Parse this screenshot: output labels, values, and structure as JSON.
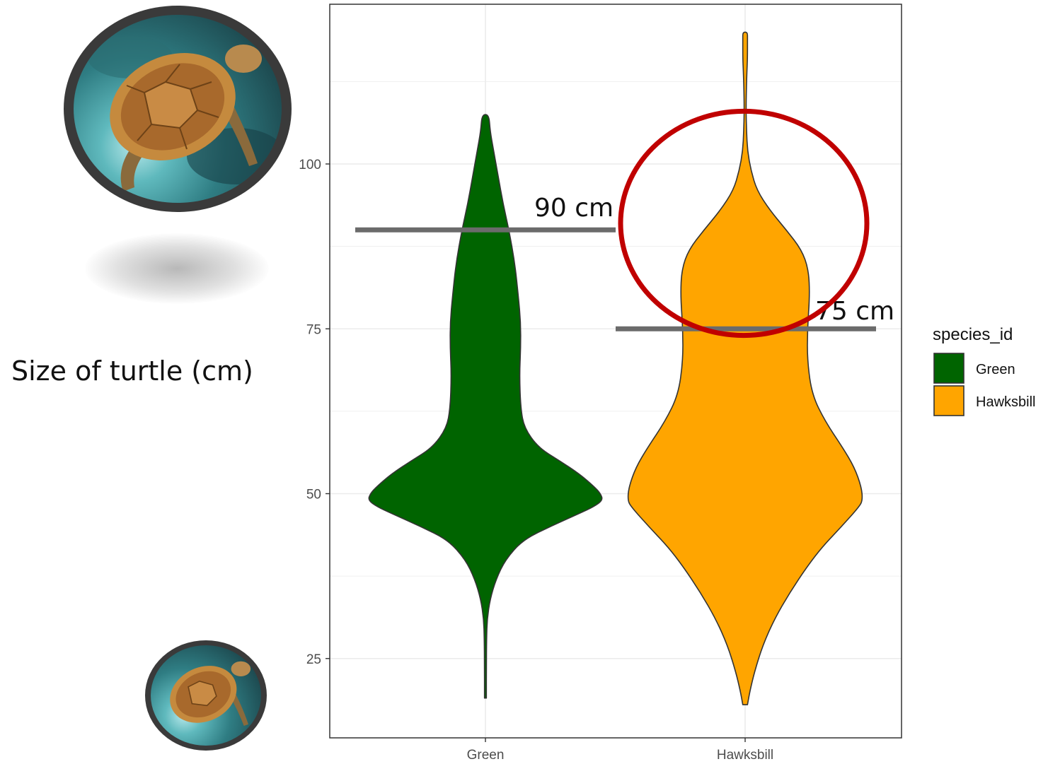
{
  "side_label": "Size of turtle (cm)",
  "images": {
    "large": "sea-turtle-photo",
    "small": "sea-turtle-photo"
  },
  "chart_data": {
    "type": "violin",
    "xlabel": "",
    "ylabel": "",
    "categories": [
      "Green",
      "Hawksbill"
    ],
    "ylim": [
      13,
      125
    ],
    "yticks": [
      25,
      50,
      75,
      100
    ],
    "grid": true,
    "series": [
      {
        "name": "Green",
        "color": "#006400",
        "min": 19,
        "max": 107.5,
        "profile": [
          [
            19,
            0.008
          ],
          [
            24,
            0.008
          ],
          [
            28,
            0.01
          ],
          [
            31,
            0.015
          ],
          [
            34,
            0.04
          ],
          [
            37,
            0.09
          ],
          [
            40,
            0.17
          ],
          [
            43,
            0.32
          ],
          [
            45,
            0.55
          ],
          [
            47,
            0.8
          ],
          [
            48,
            0.92
          ],
          [
            49,
            1.0
          ],
          [
            50,
            0.98
          ],
          [
            51,
            0.93
          ],
          [
            53,
            0.8
          ],
          [
            55,
            0.63
          ],
          [
            57,
            0.45
          ],
          [
            60,
            0.33
          ],
          [
            63,
            0.3
          ],
          [
            68,
            0.29
          ],
          [
            72,
            0.3
          ],
          [
            76,
            0.3
          ],
          [
            80,
            0.28
          ],
          [
            85,
            0.25
          ],
          [
            90,
            0.2
          ],
          [
            94,
            0.15
          ],
          [
            98,
            0.11
          ],
          [
            102,
            0.07
          ],
          [
            105,
            0.04
          ],
          [
            107.5,
            0.03
          ]
        ]
      },
      {
        "name": "Hawksbill",
        "color": "#FFA500",
        "min": 18,
        "max": 120,
        "profile": [
          [
            18,
            0.02
          ],
          [
            20,
            0.04
          ],
          [
            23,
            0.08
          ],
          [
            27,
            0.15
          ],
          [
            31,
            0.25
          ],
          [
            35,
            0.38
          ],
          [
            39,
            0.53
          ],
          [
            42,
            0.66
          ],
          [
            45,
            0.82
          ],
          [
            48,
            0.97
          ],
          [
            49,
            1.0
          ],
          [
            51,
            0.99
          ],
          [
            54,
            0.93
          ],
          [
            57,
            0.83
          ],
          [
            61,
            0.68
          ],
          [
            65,
            0.57
          ],
          [
            70,
            0.53
          ],
          [
            75,
            0.53
          ],
          [
            80,
            0.55
          ],
          [
            84,
            0.54
          ],
          [
            87,
            0.48
          ],
          [
            90,
            0.35
          ],
          [
            93,
            0.21
          ],
          [
            96,
            0.1
          ],
          [
            99,
            0.05
          ],
          [
            102,
            0.02
          ],
          [
            105,
            0.012
          ],
          [
            108,
            0.008
          ],
          [
            111,
            0.01
          ],
          [
            114,
            0.015
          ],
          [
            116,
            0.02
          ],
          [
            119,
            0.02
          ],
          [
            120,
            0.02
          ]
        ]
      }
    ],
    "annotations": [
      {
        "label": "90 cm",
        "y": 90,
        "category": "Green"
      },
      {
        "label": "75 cm",
        "y": 75,
        "category": "Hawksbill"
      }
    ],
    "highlight": {
      "shape": "ellipse",
      "color": "#C00000",
      "center_category": "Hawksbill",
      "y_range": [
        74,
        108
      ]
    },
    "legend": {
      "title": "species_id",
      "position": "right",
      "items": [
        "Green",
        "Hawksbill"
      ]
    }
  }
}
